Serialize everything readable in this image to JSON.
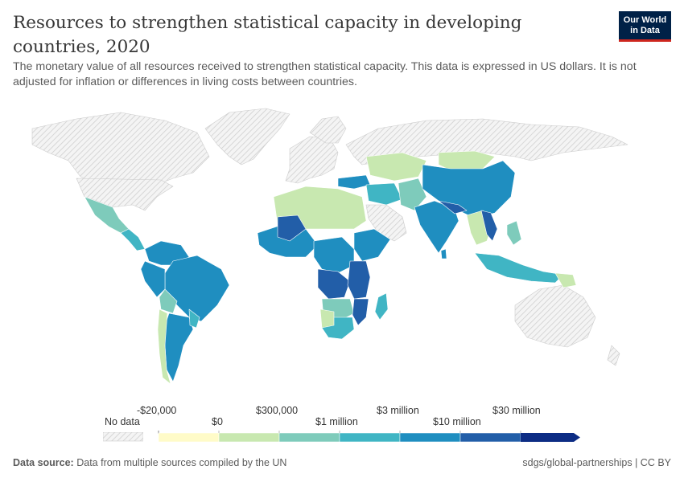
{
  "header": {
    "title": "Resources to strengthen statistical capacity in developing countries, 2020",
    "subtitle": "The monetary value of all resources received to strengthen statistical capacity. This data is expressed in US dollars. It is not adjusted for inflation or differences in living costs between countries.",
    "logo_line1": "Our World",
    "logo_line2": "in Data"
  },
  "legend": {
    "no_data_label": "No data",
    "bins": [
      {
        "top": "-$20,000",
        "bottom": "$0",
        "color": "#fffbc8"
      },
      {
        "top": "$300,000",
        "bottom": "$1 million",
        "color": "#c8e8b0"
      },
      {
        "top": "$3 million",
        "bottom": "$10 million",
        "color": "#7ecbbb"
      },
      {
        "top": "$30 million",
        "bottom": "",
        "color": "#40b5c4"
      }
    ],
    "colors": [
      "#fffbc8",
      "#c8e8b0",
      "#7ecbbb",
      "#40b5c4",
      "#1f8ec0",
      "#225ea8",
      "#0c2c84"
    ],
    "no_data_color": "#e8e8e8"
  },
  "footer": {
    "source_label": "Data source:",
    "source_text": "Data from multiple sources compiled by the UN",
    "url": "sdgs/global-partnerships | CC BY"
  }
}
